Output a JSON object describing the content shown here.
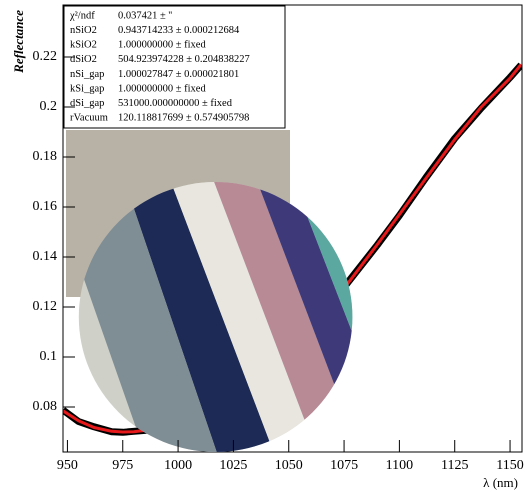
{
  "chart_data": {
    "type": "line",
    "y_label": "Reflectance",
    "x_label": "λ (nm)",
    "x": [
      948,
      955,
      962,
      970,
      975,
      980,
      990,
      1000,
      1010,
      1025,
      1040,
      1050,
      1060,
      1075,
      1090,
      1100,
      1112,
      1125,
      1137,
      1150,
      1155
    ],
    "series": [
      {
        "color": "#000000",
        "values": [
          0.0788,
          0.0742,
          0.0721,
          0.0701,
          0.0699,
          0.0703,
          0.071,
          0.0741,
          0.0772,
          0.0853,
          0.0951,
          0.1043,
          0.1127,
          0.1279,
          0.1448,
          0.1566,
          0.1718,
          0.1874,
          0.1996,
          0.2118,
          0.2168
        ]
      },
      {
        "color": "#e8191b",
        "values": [
          0.0785,
          0.0745,
          0.0718,
          0.0703,
          0.07,
          0.0701,
          0.0712,
          0.0738,
          0.0775,
          0.085,
          0.0955,
          0.104,
          0.113,
          0.1275,
          0.145,
          0.157,
          0.1715,
          0.187,
          0.2,
          0.2115,
          0.217
        ]
      }
    ],
    "xlim": [
      948,
      1155.4
    ],
    "ylim": [
      0.062,
      0.2408
    ],
    "xticks": [
      950,
      975,
      1000,
      1025,
      1050,
      1075,
      1100,
      1125,
      1150
    ],
    "yticks": [
      0.08,
      0.1,
      0.12,
      0.14,
      0.16,
      0.18,
      0.2,
      0.22
    ],
    "stats": [
      {
        "label": "χ²/ndf",
        "value": "0.037421 ± ''"
      },
      {
        "label": "nSiO2",
        "value": "0.943714233 ± 0.000212684"
      },
      {
        "label": "kSiO2",
        "value": "1.000000000 ± fixed"
      },
      {
        "label": "dSiO2",
        "value": "504.923974228 ± 0.204838227"
      },
      {
        "label": "nSi_gap",
        "value": "1.000027847 ± 0.000021801"
      },
      {
        "label": "kSi_gap",
        "value": "1.000000000 ± fixed"
      },
      {
        "label": "dSi_gap",
        "value": "531000.000000000 ± fixed"
      },
      {
        "label": "rVacuum",
        "value": "120.118817699 ± 0.574905798"
      }
    ]
  }
}
